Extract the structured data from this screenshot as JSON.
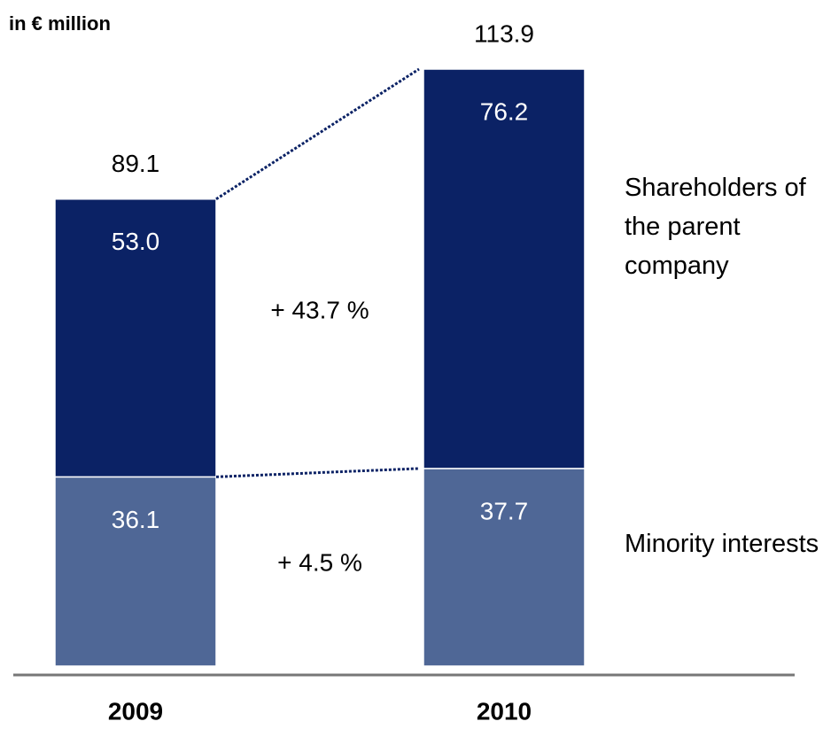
{
  "chart_data": {
    "type": "stacked_bar",
    "unit_label": "in € million",
    "categories": [
      "2009",
      "2010"
    ],
    "series": [
      {
        "name": "Minority interests",
        "color": "#4f6796",
        "values": [
          36.1,
          37.7
        ]
      },
      {
        "name": "Shareholders of the parent company",
        "color": "#0b2265",
        "values": [
          53.0,
          76.2
        ],
        "value_labels": [
          "53.0",
          "76.2"
        ]
      }
    ],
    "totals": [
      89.1,
      113.9
    ],
    "annotations": [
      "+ 43.7 %",
      "+ 4.5 %"
    ]
  }
}
